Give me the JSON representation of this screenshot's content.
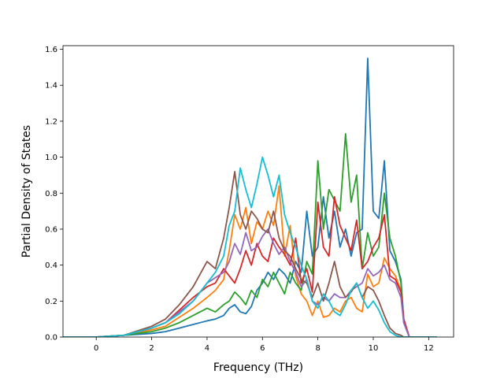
{
  "chart_data": {
    "type": "line",
    "title": "",
    "xlabel": "Frequency (THz)",
    "ylabel": "Partial Density of States",
    "xlim": [
      -1.2,
      12.9
    ],
    "ylim": [
      0,
      1.62
    ],
    "xticks": [
      0,
      2,
      4,
      6,
      8,
      10,
      12
    ],
    "xtick_labels": [
      "0",
      "2",
      "4",
      "6",
      "8",
      "10",
      "12"
    ],
    "yticks": [
      0.0,
      0.2,
      0.4,
      0.6,
      0.8,
      1.0,
      1.2,
      1.4,
      1.6
    ],
    "ytick_labels": [
      "0.0",
      "0.2",
      "0.4",
      "0.6",
      "0.8",
      "1.0",
      "1.2",
      "1.4",
      "1.6"
    ],
    "grid": false,
    "legend": false,
    "x": [
      -1.2,
      0,
      1.0,
      2.0,
      2.5,
      3.0,
      3.5,
      4.0,
      4.3,
      4.6,
      4.8,
      5.0,
      5.2,
      5.4,
      5.6,
      5.8,
      6.0,
      6.2,
      6.4,
      6.6,
      6.8,
      7.0,
      7.2,
      7.4,
      7.6,
      7.8,
      8.0,
      8.2,
      8.4,
      8.6,
      8.8,
      9.0,
      9.2,
      9.4,
      9.6,
      9.8,
      10.0,
      10.2,
      10.4,
      10.6,
      10.8,
      11.0,
      11.1,
      11.3,
      12.3
    ],
    "series": [
      {
        "color": "#1f77b4",
        "values": [
          0,
          0,
          0.01,
          0.02,
          0.03,
          0.05,
          0.07,
          0.09,
          0.1,
          0.12,
          0.16,
          0.18,
          0.14,
          0.13,
          0.17,
          0.26,
          0.3,
          0.36,
          0.32,
          0.38,
          0.35,
          0.3,
          0.42,
          0.36,
          0.7,
          0.45,
          0.5,
          0.78,
          0.55,
          0.7,
          0.5,
          0.6,
          0.45,
          0.58,
          0.6,
          1.55,
          0.7,
          0.66,
          0.98,
          0.48,
          0.42,
          0.32,
          0.1,
          0,
          0
        ]
      },
      {
        "color": "#ff7f0e",
        "values": [
          0,
          0,
          0.01,
          0.04,
          0.06,
          0.11,
          0.16,
          0.22,
          0.26,
          0.32,
          0.48,
          0.68,
          0.6,
          0.72,
          0.52,
          0.64,
          0.6,
          0.7,
          0.62,
          0.84,
          0.45,
          0.62,
          0.34,
          0.24,
          0.2,
          0.12,
          0.2,
          0.11,
          0.12,
          0.16,
          0.14,
          0.2,
          0.22,
          0.16,
          0.14,
          0.35,
          0.28,
          0.3,
          0.44,
          0.38,
          0.34,
          0.26,
          0.1,
          0,
          0
        ]
      },
      {
        "color": "#2ca02c",
        "values": [
          0,
          0,
          0.01,
          0.03,
          0.05,
          0.08,
          0.12,
          0.16,
          0.14,
          0.18,
          0.2,
          0.25,
          0.22,
          0.18,
          0.26,
          0.22,
          0.32,
          0.28,
          0.36,
          0.3,
          0.24,
          0.36,
          0.3,
          0.26,
          0.42,
          0.35,
          0.98,
          0.6,
          0.82,
          0.76,
          0.7,
          1.13,
          0.75,
          0.9,
          0.38,
          0.58,
          0.45,
          0.5,
          0.8,
          0.55,
          0.45,
          0.3,
          0.08,
          0,
          0
        ]
      },
      {
        "color": "#d62728",
        "values": [
          0,
          0,
          0.01,
          0.05,
          0.08,
          0.15,
          0.22,
          0.28,
          0.3,
          0.38,
          0.34,
          0.3,
          0.38,
          0.48,
          0.4,
          0.52,
          0.45,
          0.42,
          0.55,
          0.5,
          0.46,
          0.4,
          0.55,
          0.3,
          0.38,
          0.25,
          0.75,
          0.5,
          0.45,
          0.78,
          0.62,
          0.55,
          0.48,
          0.65,
          0.38,
          0.42,
          0.5,
          0.55,
          0.68,
          0.34,
          0.32,
          0.25,
          0.1,
          0,
          0
        ]
      },
      {
        "color": "#9467bd",
        "values": [
          0,
          0,
          0.01,
          0.05,
          0.08,
          0.14,
          0.2,
          0.3,
          0.33,
          0.36,
          0.42,
          0.52,
          0.46,
          0.58,
          0.48,
          0.5,
          0.56,
          0.6,
          0.52,
          0.46,
          0.5,
          0.42,
          0.36,
          0.28,
          0.32,
          0.2,
          0.18,
          0.22,
          0.2,
          0.24,
          0.22,
          0.22,
          0.26,
          0.28,
          0.3,
          0.38,
          0.34,
          0.36,
          0.4,
          0.32,
          0.3,
          0.22,
          0.08,
          0,
          0
        ]
      },
      {
        "color": "#8c564b",
        "values": [
          0,
          0,
          0.01,
          0.06,
          0.1,
          0.18,
          0.28,
          0.42,
          0.38,
          0.55,
          0.72,
          0.92,
          0.68,
          0.6,
          0.7,
          0.66,
          0.6,
          0.58,
          0.7,
          0.55,
          0.48,
          0.45,
          0.38,
          0.32,
          0.3,
          0.22,
          0.3,
          0.2,
          0.3,
          0.42,
          0.28,
          0.22,
          0.25,
          0.3,
          0.22,
          0.28,
          0.26,
          0.2,
          0.12,
          0.05,
          0.02,
          0.01,
          0,
          0,
          0
        ]
      },
      {
        "color": "#17becf",
        "values": [
          0,
          0,
          0.01,
          0.05,
          0.08,
          0.13,
          0.2,
          0.3,
          0.36,
          0.45,
          0.62,
          0.7,
          0.94,
          0.82,
          0.72,
          0.85,
          1.0,
          0.9,
          0.78,
          0.9,
          0.68,
          0.58,
          0.5,
          0.4,
          0.32,
          0.2,
          0.16,
          0.24,
          0.2,
          0.14,
          0.12,
          0.18,
          0.26,
          0.3,
          0.22,
          0.16,
          0.2,
          0.15,
          0.08,
          0.03,
          0.01,
          0,
          0,
          0,
          0
        ]
      }
    ]
  }
}
